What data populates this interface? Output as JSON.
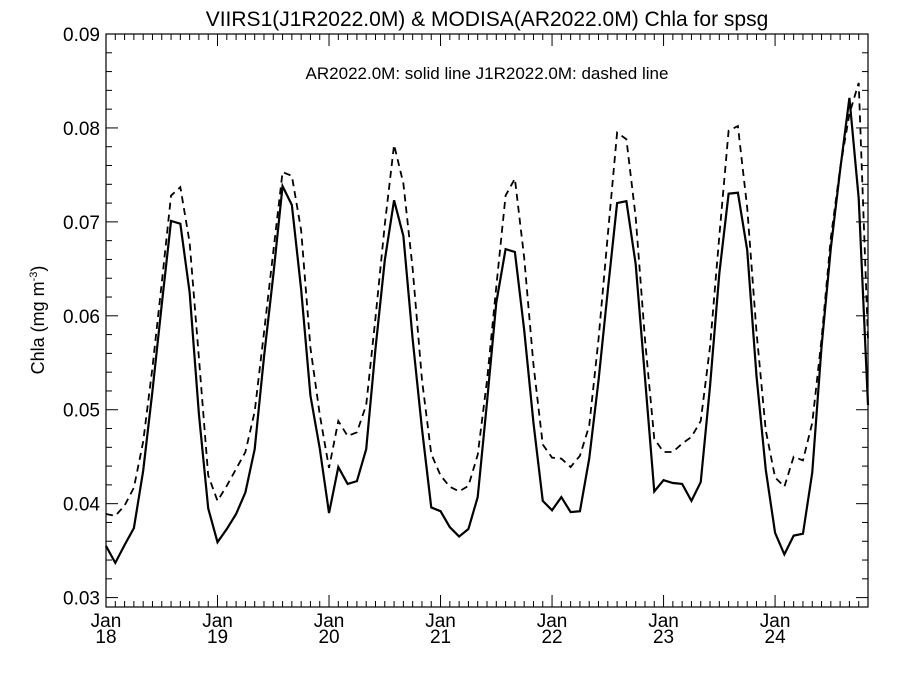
{
  "chart_data": {
    "type": "line",
    "title": "VIIRS1(J1R2022.0M) & MODISA(AR2022.0M)  Chla for spsg",
    "annotation": "AR2022.0M: solid line   J1R2022.0M: dashed line",
    "ylabel": "Chla (mg m",
    "ylabel_superscript": "-3",
    "ylabel_close": ")",
    "xlabel": "",
    "ylim": [
      0.029,
      0.09
    ],
    "yticks": [
      0.03,
      0.04,
      0.05,
      0.06,
      0.07,
      0.08,
      0.09
    ],
    "ytick_labels": [
      "0.03",
      "0.04",
      "0.05",
      "0.06",
      "0.07",
      "0.08",
      "0.09"
    ],
    "xlim": [
      0,
      82
    ],
    "xticks": [
      {
        "pos": 0,
        "month": "Jan",
        "year": "18"
      },
      {
        "pos": 12,
        "month": "Jan",
        "year": "19"
      },
      {
        "pos": 24,
        "month": "Jan",
        "year": "20"
      },
      {
        "pos": 36,
        "month": "Jan",
        "year": "21"
      },
      {
        "pos": 48,
        "month": "Jan",
        "year": "22"
      },
      {
        "pos": 60,
        "month": "Jan",
        "year": "23"
      },
      {
        "pos": 72,
        "month": "Jan",
        "year": "24"
      }
    ],
    "grid": false,
    "series": [
      {
        "name": "AR2022.0M",
        "style": "solid",
        "x": [
          0,
          1,
          2,
          3,
          4,
          5,
          6,
          7,
          8,
          9,
          10,
          11,
          12,
          13,
          14,
          15,
          16,
          17,
          18,
          19,
          20,
          21,
          22,
          23,
          24,
          25,
          26,
          27,
          28,
          29,
          30,
          31,
          32,
          33,
          34,
          35,
          36,
          37,
          38,
          39,
          40,
          41,
          42,
          43,
          44,
          45,
          46,
          47,
          48,
          49,
          50,
          51,
          52,
          53,
          54,
          55,
          56,
          57,
          58,
          59,
          60,
          61,
          62,
          63,
          64,
          65,
          66,
          67,
          68,
          69,
          70,
          71,
          72,
          73,
          74,
          75,
          76,
          77,
          78,
          79,
          80,
          81,
          82
        ],
        "values": [
          0.0355,
          0.0337,
          0.0356,
          0.0374,
          0.0435,
          0.052,
          0.0612,
          0.0701,
          0.0698,
          0.0625,
          0.0495,
          0.0395,
          0.0359,
          0.0373,
          0.0389,
          0.0412,
          0.0458,
          0.0556,
          0.0643,
          0.0738,
          0.0718,
          0.0628,
          0.0515,
          0.0459,
          0.039,
          0.0439,
          0.0421,
          0.0424,
          0.0458,
          0.0565,
          0.0659,
          0.0723,
          0.0685,
          0.0575,
          0.048,
          0.0396,
          0.0392,
          0.0375,
          0.0365,
          0.0373,
          0.0407,
          0.0508,
          0.0614,
          0.0671,
          0.0668,
          0.0585,
          0.0486,
          0.0403,
          0.0393,
          0.0407,
          0.0391,
          0.0392,
          0.0448,
          0.0531,
          0.0627,
          0.072,
          0.0722,
          0.0655,
          0.0534,
          0.0413,
          0.0425,
          0.0422,
          0.0421,
          0.0403,
          0.0423,
          0.0525,
          0.0645,
          0.073,
          0.0731,
          0.067,
          0.0536,
          0.0436,
          0.0369,
          0.0346,
          0.0366,
          0.0368,
          0.0433,
          0.0567,
          0.0672,
          0.0755,
          0.0832,
          0.0725,
          0.0505
        ]
      },
      {
        "name": "J1R2022.0M",
        "style": "dashed",
        "x": [
          0,
          1,
          2,
          3,
          4,
          5,
          6,
          7,
          8,
          9,
          10,
          11,
          12,
          13,
          14,
          15,
          16,
          17,
          18,
          19,
          20,
          21,
          22,
          23,
          24,
          25,
          26,
          27,
          28,
          29,
          30,
          31,
          32,
          33,
          34,
          35,
          36,
          37,
          38,
          39,
          40,
          41,
          42,
          43,
          44,
          45,
          46,
          47,
          48,
          49,
          50,
          51,
          52,
          53,
          54,
          55,
          56,
          57,
          58,
          59,
          60,
          61,
          62,
          63,
          64,
          65,
          66,
          67,
          68,
          69,
          70,
          71,
          72,
          73,
          74,
          75,
          76,
          77,
          78,
          79,
          80,
          81,
          82
        ],
        "values": [
          0.0389,
          0.0387,
          0.0398,
          0.0417,
          0.0466,
          0.0545,
          0.0635,
          0.0728,
          0.0737,
          0.0678,
          0.0555,
          0.043,
          0.0403,
          0.0419,
          0.0437,
          0.0455,
          0.0498,
          0.0582,
          0.0668,
          0.0753,
          0.0749,
          0.0691,
          0.0566,
          0.0495,
          0.0438,
          0.0488,
          0.0472,
          0.0476,
          0.0505,
          0.0598,
          0.0697,
          0.0782,
          0.0741,
          0.065,
          0.0532,
          0.0453,
          0.043,
          0.0418,
          0.0413,
          0.0419,
          0.0452,
          0.0531,
          0.0631,
          0.0728,
          0.0746,
          0.0662,
          0.0548,
          0.0463,
          0.0449,
          0.0448,
          0.0439,
          0.0451,
          0.0483,
          0.0575,
          0.0686,
          0.0795,
          0.0788,
          0.0705,
          0.0575,
          0.0469,
          0.0455,
          0.0455,
          0.0464,
          0.0471,
          0.0488,
          0.0567,
          0.0685,
          0.0797,
          0.0802,
          0.0715,
          0.0583,
          0.0478,
          0.0428,
          0.0418,
          0.045,
          0.0446,
          0.0486,
          0.0575,
          0.0683,
          0.0757,
          0.0815,
          0.0848,
          0.0575
        ]
      }
    ]
  }
}
